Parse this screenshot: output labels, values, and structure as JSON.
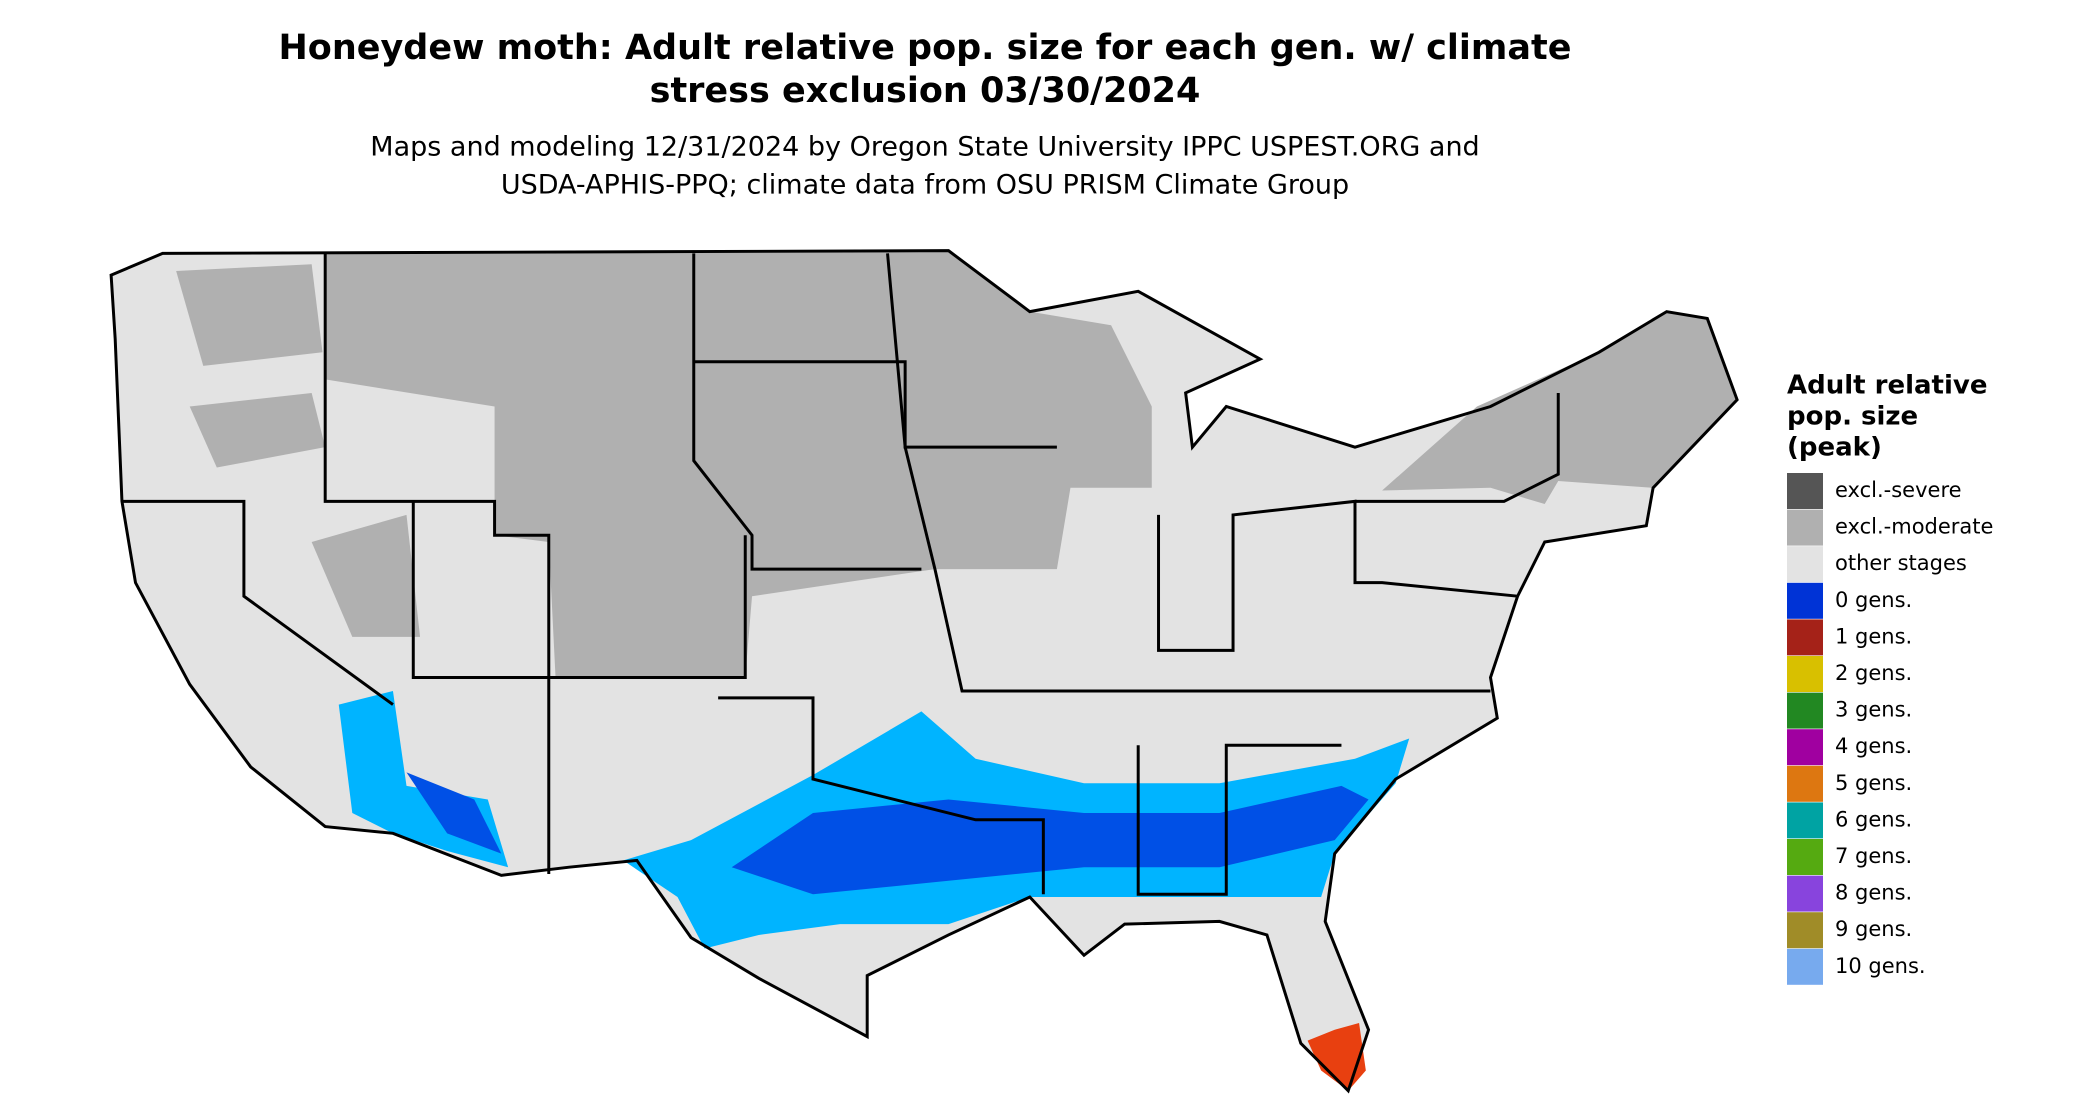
{
  "title": [
    "Honeydew moth: Adult relative pop. size for each gen. w/ climate",
    "stress exclusion 03/30/2024"
  ],
  "subtitle": [
    "Maps and modeling 12/31/2024 by Oregon State University IPPC USPEST.ORG and",
    "USDA-APHIS-PPQ; climate data from OSU PRISM Climate Group"
  ],
  "legend": {
    "title": [
      "Adult relative",
      "pop. size",
      "(peak)"
    ],
    "items": [
      {
        "label": "excl.-severe",
        "color": "#555555"
      },
      {
        "label": "excl.-moderate",
        "color": "#b0b0b0"
      },
      {
        "label": "other stages",
        "color": "#e3e3e3"
      },
      {
        "label": "0 gens.",
        "color": "#0033d6"
      },
      {
        "label": "1 gens.",
        "color": "#a52218"
      },
      {
        "label": "2 gens.",
        "color": "#d8c000"
      },
      {
        "label": "3 gens.",
        "color": "#228822"
      },
      {
        "label": "4 gens.",
        "color": "#a000a0"
      },
      {
        "label": "5 gens.",
        "color": "#dd7711"
      },
      {
        "label": "6 gens.",
        "color": "#00a3a3"
      },
      {
        "label": "7 gens.",
        "color": "#55aa11"
      },
      {
        "label": "8 gens.",
        "color": "#8844dd"
      },
      {
        "label": "9 gens.",
        "color": "#a08c28"
      },
      {
        "label": "10 gens.",
        "color": "#77aaee"
      }
    ]
  }
}
